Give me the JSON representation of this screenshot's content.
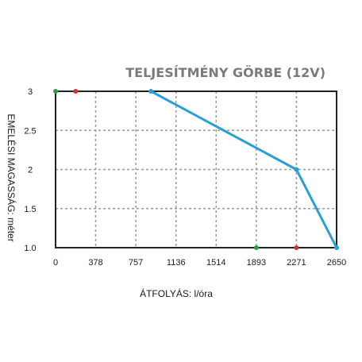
{
  "chart_data": {
    "type": "line",
    "title": "TELJESÍTMÉNY GÖRBE (12V)",
    "xlabel": "ÁTFOLYÁS: l/óra",
    "ylabel": "EMELÉSI MAGASSÁG: méter",
    "x_ticks": [
      "0",
      "378",
      "757",
      "1136",
      "1514",
      "1893",
      "2271",
      "2650"
    ],
    "x_tick_values": [
      0,
      378,
      757,
      1136,
      1514,
      1893,
      2271,
      2650
    ],
    "y_ticks": [
      "3",
      "2.5",
      "2",
      "1.5",
      "1.0"
    ],
    "y_tick_values": [
      3,
      2.5,
      2,
      1.5,
      1.0
    ],
    "xlim": [
      0,
      2650
    ],
    "ylim": [
      1.0,
      3.0
    ],
    "grid": true,
    "series": [
      {
        "color": "#2a9fd6",
        "points": [
          {
            "x": 900,
            "y": 3.0
          },
          {
            "x": 2271,
            "y": 2.0
          },
          {
            "x": 2650,
            "y": 1.0
          }
        ]
      }
    ],
    "markers": [
      {
        "x": 0,
        "y": 3.0,
        "color": "#2e9e3e"
      },
      {
        "x": 189,
        "y": 3.0,
        "color": "#d93030"
      },
      {
        "x": 1893,
        "y": 1.0,
        "color": "#2e9e3e"
      },
      {
        "x": 2271,
        "y": 1.0,
        "color": "#d93030"
      }
    ]
  }
}
